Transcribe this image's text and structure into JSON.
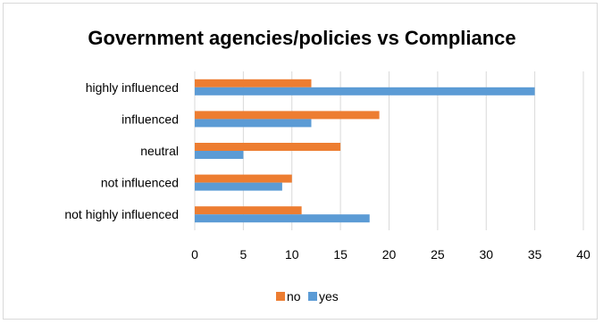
{
  "chart_data": {
    "type": "bar",
    "orientation": "horizontal",
    "title": "Government agencies/policies vs  Compliance",
    "categories": [
      "highly influenced",
      "influenced",
      "neutral",
      "not influenced",
      "not highly influenced"
    ],
    "series": [
      {
        "name": "no",
        "color": "#ED7D31",
        "values": [
          12,
          19,
          15,
          10,
          11
        ]
      },
      {
        "name": "yes",
        "color": "#5B9BD5",
        "values": [
          35,
          12,
          5,
          9,
          18
        ]
      }
    ],
    "xlim": [
      0,
      40
    ],
    "xticks": [
      0,
      5,
      10,
      15,
      20,
      25,
      30,
      35,
      40
    ],
    "grid": true,
    "legend_position": "bottom"
  }
}
